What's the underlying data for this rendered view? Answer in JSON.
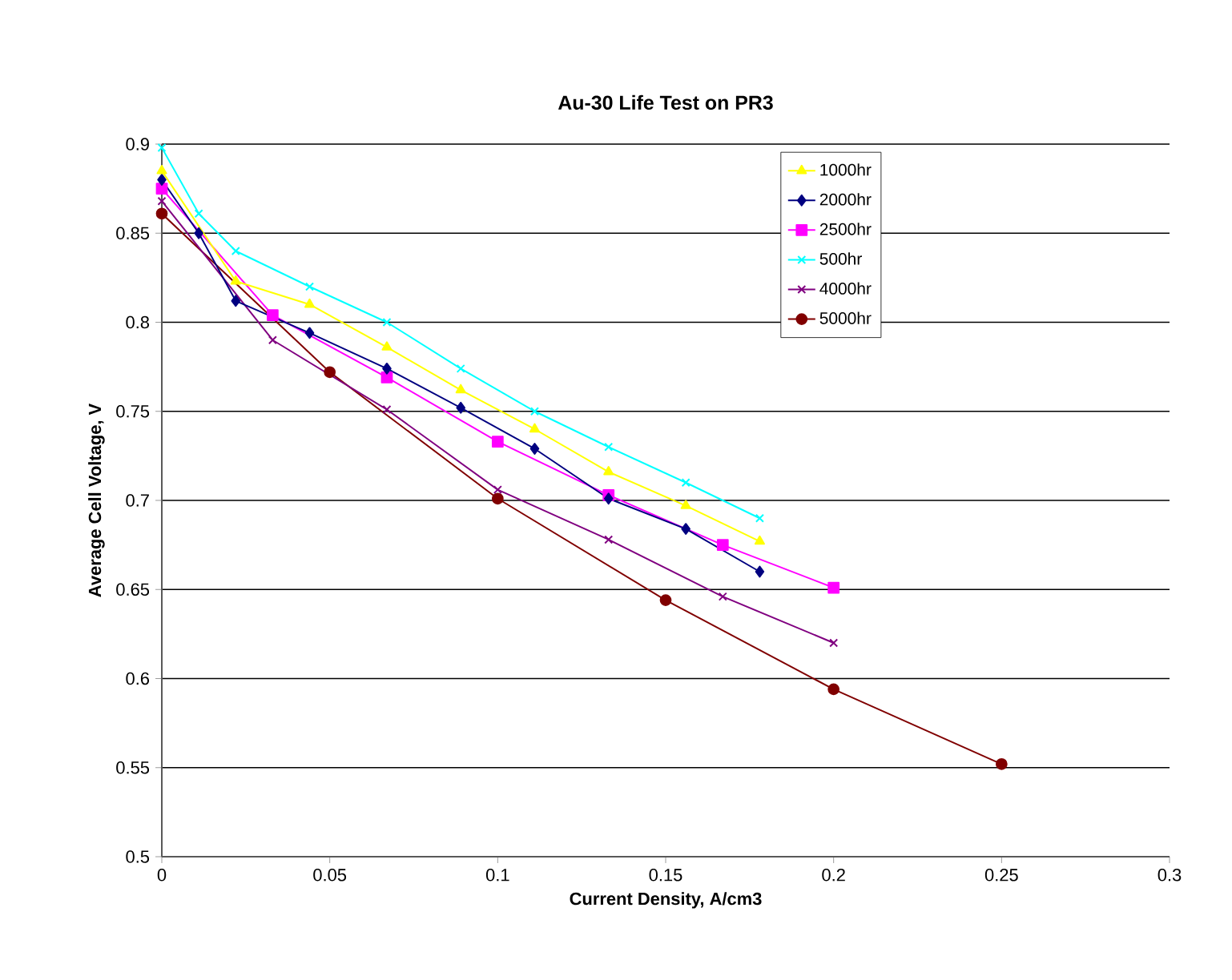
{
  "chart_data": {
    "type": "line",
    "title": "Au-30 Life Test on PR3",
    "xlabel": "Current Density, A/cm3",
    "ylabel": "Average Cell Voltage, V",
    "xlim": [
      0,
      0.3
    ],
    "xticks": [
      0,
      0.05,
      0.1,
      0.15,
      0.2,
      0.25,
      0.3
    ],
    "ylim": [
      0.5,
      0.9
    ],
    "yticks": [
      0.5,
      0.55,
      0.6,
      0.65,
      0.7,
      0.75,
      0.8,
      0.85,
      0.9
    ],
    "grid": "y",
    "legend": "top right",
    "line_style": "solid",
    "series": [
      {
        "name": "1000hr",
        "color": "#ffff00",
        "marker": "triangle",
        "x": [
          0,
          0.022,
          0.044,
          0.067,
          0.089,
          0.111,
          0.133,
          0.156,
          0.178
        ],
        "values": [
          0.885,
          0.823,
          0.81,
          0.786,
          0.762,
          0.74,
          0.716,
          0.697,
          0.677
        ]
      },
      {
        "name": "2000hr",
        "color": "#000080",
        "marker": "diamond",
        "x": [
          0,
          0.011,
          0.022,
          0.044,
          0.067,
          0.089,
          0.111,
          0.133,
          0.156,
          0.178
        ],
        "values": [
          0.88,
          0.85,
          0.812,
          0.794,
          0.774,
          0.752,
          0.729,
          0.701,
          0.684,
          0.66
        ]
      },
      {
        "name": "2500hr",
        "color": "#ff00ff",
        "marker": "square",
        "x": [
          0,
          0.033,
          0.067,
          0.1,
          0.133,
          0.167,
          0.2
        ],
        "values": [
          0.875,
          0.804,
          0.769,
          0.733,
          0.703,
          0.675,
          0.651
        ]
      },
      {
        "name": "500hr",
        "color": "#00ffff",
        "marker": "cross",
        "x": [
          0,
          0.011,
          0.022,
          0.044,
          0.067,
          0.089,
          0.111,
          0.133,
          0.156,
          0.178
        ],
        "values": [
          0.898,
          0.861,
          0.84,
          0.82,
          0.8,
          0.774,
          0.75,
          0.73,
          0.71,
          0.69
        ]
      },
      {
        "name": "4000hr",
        "color": "#800080",
        "marker": "cross",
        "x": [
          0,
          0.033,
          0.067,
          0.1,
          0.133,
          0.167,
          0.2
        ],
        "values": [
          0.868,
          0.79,
          0.751,
          0.706,
          0.678,
          0.646,
          0.62
        ]
      },
      {
        "name": "5000hr",
        "color": "#800000",
        "marker": "circle",
        "x": [
          0,
          0.05,
          0.1,
          0.15,
          0.2,
          0.25
        ],
        "values": [
          0.861,
          0.772,
          0.701,
          0.644,
          0.594,
          0.552
        ]
      }
    ]
  }
}
